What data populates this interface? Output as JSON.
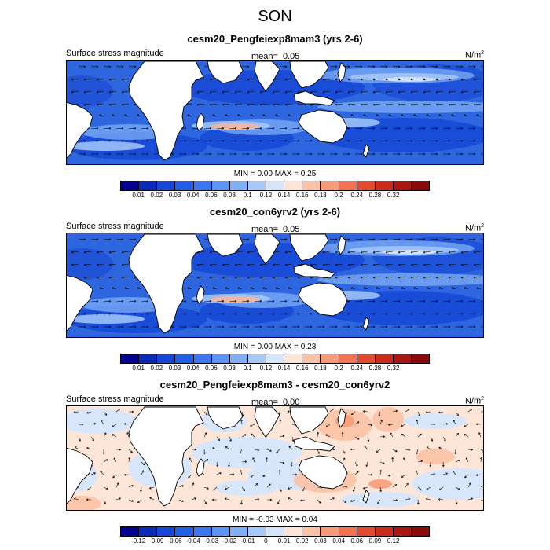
{
  "title": "SON",
  "panels": [
    {
      "title": "cesm20_Pengfeiexp8mam3 (yrs 2-6)",
      "left_label": "Surface stress magnitude",
      "mean_label": "mean=",
      "mean_value": "0.05",
      "units_base": "N/m",
      "units_sup": "2",
      "min_label": "MIN =",
      "min_value": "0.00",
      "max_label": "MAX =",
      "max_value": "0.25",
      "colorbar": {
        "colors": [
          "#03008f",
          "#0a2ab8",
          "#1447d6",
          "#2060e6",
          "#3a78ef",
          "#5a94f4",
          "#7eaff7",
          "#a6c8fa",
          "#d5e6fc",
          "#fde6d8",
          "#fcc2a5",
          "#f89c78",
          "#f17350",
          "#e24a2c",
          "#cc2b19",
          "#a81710",
          "#8a0c0a"
        ],
        "ticks": [
          "0.01",
          "0.02",
          "0.03",
          "0.04",
          "0.06",
          "0.08",
          "0.1",
          "0.12",
          "0.14",
          "0.16",
          "0.18",
          "0.2",
          "0.24",
          "0.28",
          "0.32"
        ]
      },
      "field": "magnitude"
    },
    {
      "title": "cesm20_con6yrv2 (yrs 2-6)",
      "left_label": "Surface stress magnitude",
      "mean_label": "mean=",
      "mean_value": "0.05",
      "units_base": "N/m",
      "units_sup": "2",
      "min_label": "MIN =",
      "min_value": "0.00",
      "max_label": "MAX =",
      "max_value": "0.23",
      "colorbar": {
        "colors": [
          "#03008f",
          "#0a2ab8",
          "#1447d6",
          "#2060e6",
          "#3a78ef",
          "#5a94f4",
          "#7eaff7",
          "#a6c8fa",
          "#d5e6fc",
          "#fde6d8",
          "#fcc2a5",
          "#f89c78",
          "#f17350",
          "#e24a2c",
          "#cc2b19",
          "#a81710",
          "#8a0c0a"
        ],
        "ticks": [
          "0.01",
          "0.02",
          "0.03",
          "0.04",
          "0.06",
          "0.08",
          "0.1",
          "0.12",
          "0.14",
          "0.16",
          "0.18",
          "0.2",
          "0.24",
          "0.28",
          "0.32"
        ]
      },
      "field": "magnitude"
    },
    {
      "title": "cesm20_Pengfeiexp8mam3 - cesm20_con6yrv2",
      "left_label": "Surface stress magnitude",
      "mean_label": "mean=",
      "mean_value": "0.00",
      "units_base": "N/m",
      "units_sup": "2",
      "min_label": "MIN =",
      "min_value": "-0.03",
      "max_label": "MAX =",
      "max_value": "0.04",
      "colorbar": {
        "colors": [
          "#03008f",
          "#0a2ab8",
          "#1447d6",
          "#2060e6",
          "#3a78ef",
          "#5a94f4",
          "#7eaff7",
          "#a6c8fa",
          "#d5e6fc",
          "#fde6d8",
          "#fcc2a5",
          "#f89c78",
          "#f17350",
          "#e24a2c",
          "#cc2b19",
          "#a81710",
          "#8a0c0a"
        ],
        "ticks": [
          "-0.12",
          "-0.09",
          "-0.06",
          "-0.04",
          "-0.03",
          "-0.02",
          "-0.01",
          "0",
          "0.01",
          "0.02",
          "0.03",
          "0.04",
          "0.06",
          "0.09",
          "0.12"
        ]
      },
      "field": "difference"
    }
  ]
}
